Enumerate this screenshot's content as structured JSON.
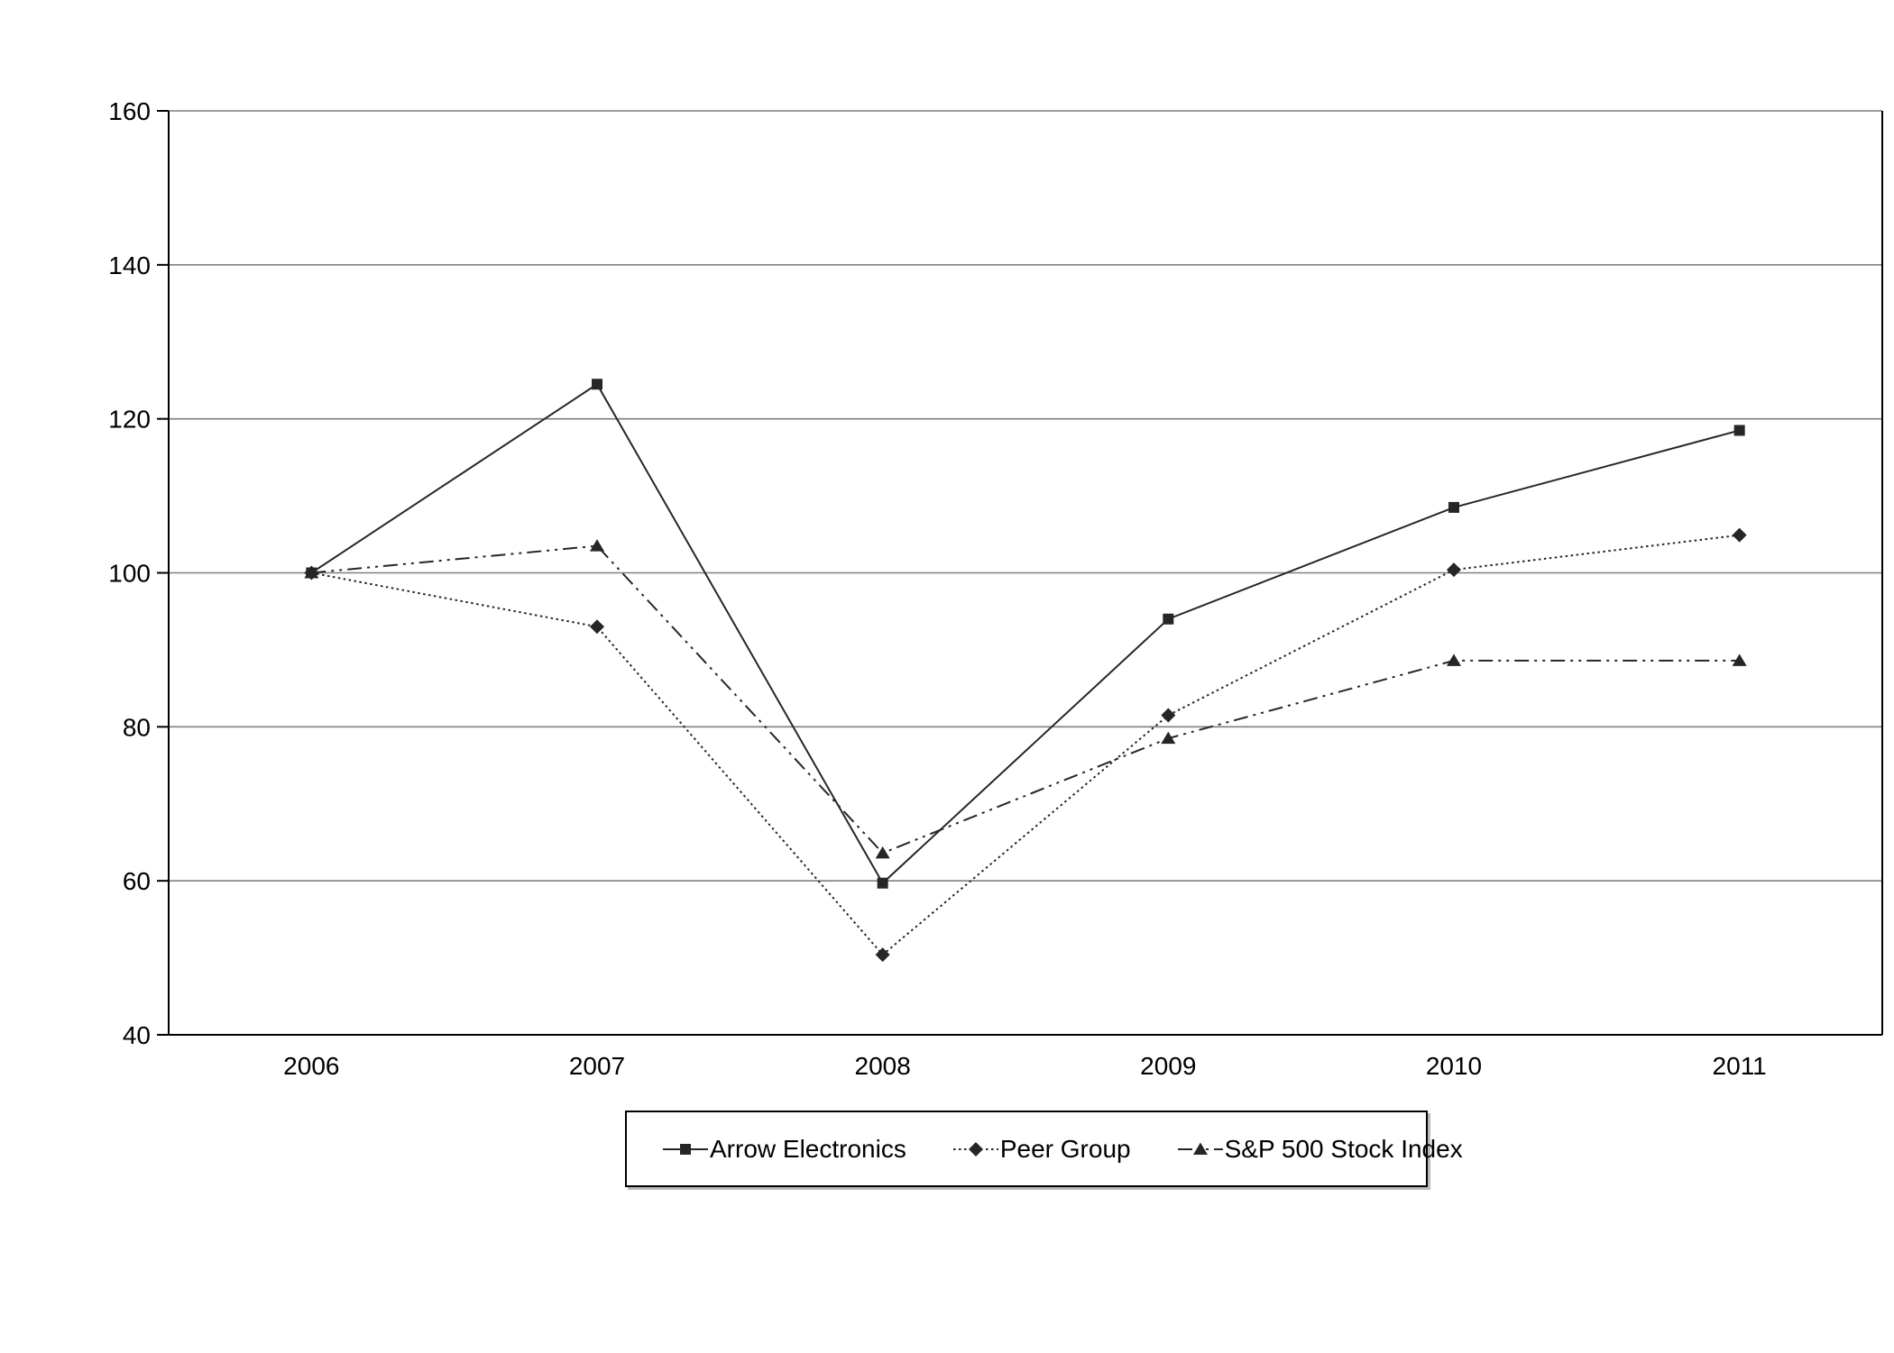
{
  "chart_data": {
    "type": "line",
    "title": "",
    "xlabel": "",
    "ylabel": "",
    "categories": [
      "2006",
      "2007",
      "2008",
      "2009",
      "2010",
      "2011"
    ],
    "series": [
      {
        "name": "Arrow Electronics",
        "marker": "square",
        "line_style": "solid",
        "values": [
          100,
          124.5,
          59.7,
          94.0,
          108.5,
          118.5
        ]
      },
      {
        "name": "Peer Group",
        "marker": "diamond",
        "line_style": "dotted",
        "values": [
          100,
          93.0,
          50.4,
          81.5,
          100.4,
          104.9
        ]
      },
      {
        "name": "S&P 500 Stock Index",
        "marker": "triangle",
        "line_style": "dash-dot-dot",
        "values": [
          100,
          103.5,
          63.6,
          78.5,
          88.6,
          88.6
        ]
      }
    ],
    "ylim": [
      40,
      160
    ],
    "y_ticks": [
      "40",
      "60",
      "80",
      "100",
      "120",
      "140",
      "160"
    ],
    "grid": "horizontal-only",
    "legend_position": "bottom-center",
    "colors": {
      "series_line": "#262626",
      "gridline": "#7f7f7f",
      "axis": "#000000",
      "text": "#000000",
      "background": "#ffffff"
    }
  }
}
